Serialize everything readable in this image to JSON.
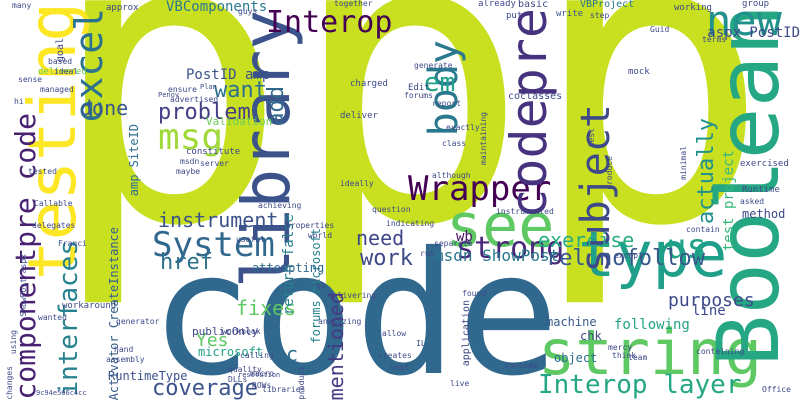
{
  "palette": {
    "background": "#ffffff",
    "yellow": "#c8e020",
    "blue": "#31688e",
    "teal": "#26a784",
    "purple": "#440154",
    "indigo": "#3b528b",
    "green": "#5ec962"
  },
  "words": [
    {
      "t": "ppp",
      "c": "#c8e020",
      "r": 0
    },
    {
      "t": "code",
      "c": "#31688e",
      "r": 0
    },
    {
      "t": "string",
      "c": "#5ec962",
      "r": 0
    },
    {
      "t": "Boolean",
      "c": "#26a784",
      "r": -90
    },
    {
      "t": "testing",
      "c": "#fde725",
      "r": -90
    },
    {
      "t": "type",
      "c": "#1f9e89",
      "r": 0
    },
    {
      "t": "library",
      "c": "#3b528b",
      "r": -90
    },
    {
      "t": "see",
      "c": "#5ec962",
      "r": 0
    },
    {
      "t": "Wrapper",
      "c": "#440154",
      "r": 0
    },
    {
      "t": "codepre",
      "c": "#46327e",
      "r": -90
    },
    {
      "t": "System",
      "c": "#31688e",
      "r": 0
    },
    {
      "t": "subject",
      "c": "#3e4989",
      "r": -90
    },
    {
      "t": "body",
      "c": "#2a788e",
      "r": -90
    },
    {
      "t": "msg",
      "c": "#a0da39",
      "r": 0
    },
    {
      "t": "excel",
      "c": "#2c728e",
      "r": -90
    },
    {
      "t": "interfaces",
      "c": "#26828e",
      "r": -90
    },
    {
      "t": "componentpre code",
      "c": "#482173",
      "r": -90
    },
    {
      "t": "Interop",
      "c": "#440154",
      "r": 0
    },
    {
      "t": "new",
      "c": "#21918c",
      "r": 0
    },
    {
      "t": "Interop layer",
      "c": "#26a784",
      "r": 0
    },
    {
      "t": "strong",
      "c": "#482878",
      "r": 0
    },
    {
      "t": "us",
      "c": "#20a386",
      "r": 0
    },
    {
      "t": "rel nofollow",
      "c": "#38588c",
      "r": 0
    },
    {
      "t": "exercise",
      "c": "#27ad81",
      "r": 0
    },
    {
      "t": "coverage",
      "c": "#3b528b",
      "r": 0
    },
    {
      "t": "problem",
      "c": "#433e85",
      "r": 0
    },
    {
      "t": "want",
      "c": "#2d708e",
      "r": 0
    },
    {
      "t": "instrument",
      "c": "#3b528b",
      "r": 0
    },
    {
      "t": "mentioned",
      "c": "#443983",
      "r": -90
    },
    {
      "t": "em",
      "c": "#1fa088",
      "r": 0
    },
    {
      "t": "work",
      "c": "#3e4989",
      "r": 0
    },
    {
      "t": "href",
      "c": "#2c728e",
      "r": 0
    },
    {
      "t": "fixes",
      "c": "#5ec962",
      "r": 0
    },
    {
      "t": "need",
      "c": "#3f4788",
      "r": 0
    },
    {
      "t": "done",
      "c": "#39568c",
      "r": 0
    },
    {
      "t": "msdn ShowPost",
      "c": "#2a788e",
      "r": 0
    },
    {
      "t": "add",
      "c": "#31688e",
      "r": -90
    },
    {
      "t": "purposes",
      "c": "#3e4a89",
      "r": 0
    },
    {
      "t": "wb",
      "c": "#471063",
      "r": 0
    },
    {
      "t": "actually",
      "c": "#21918c",
      "r": -90
    },
    {
      "t": "test project",
      "c": "#35b779",
      "r": -90
    },
    {
      "t": "aspx PostID",
      "c": "#3e4989",
      "r": 0
    },
    {
      "t": "VBComponents",
      "c": "#2a788e",
      "r": 0
    },
    {
      "t": "PostID amp",
      "c": "#3b528b",
      "r": 0
    },
    {
      "t": "amp SiteID",
      "c": "#2d708e",
      "r": -90
    },
    {
      "t": "return false",
      "c": "#27808e",
      "r": -90
    },
    {
      "t": "forums microsoft",
      "c": "#26828e",
      "r": -90
    },
    {
      "t": "Yes",
      "c": "#5ec962",
      "r": 0
    },
    {
      "t": "Activator CreateInstance",
      "c": "#355f8d",
      "r": -90
    },
    {
      "t": "c",
      "c": "#2e6e8e",
      "r": 0
    },
    {
      "t": "attempting",
      "c": "#31688e",
      "r": 0
    },
    {
      "t": "RuntimeType",
      "c": "#3b528b",
      "r": 0
    },
    {
      "t": "publicOnly",
      "c": "#3f4788",
      "r": 0
    },
    {
      "t": "Validation",
      "c": "#6ccd5a",
      "r": 0
    },
    {
      "t": "following",
      "c": "#20a386",
      "r": 0
    },
    {
      "t": "method",
      "c": "#3e4a89",
      "r": 0
    },
    {
      "t": "line",
      "c": "#3e4989",
      "r": 0
    },
    {
      "t": "chk",
      "c": "#3e4989",
      "r": 0
    },
    {
      "t": "object",
      "c": "#2e6e8e",
      "r": 0
    },
    {
      "t": "machine",
      "c": "#375a8c",
      "r": 0
    },
    {
      "t": "microsoft",
      "c": "#20a486",
      "r": 0
    },
    {
      "t": "coclasses",
      "c": "#3e4989",
      "r": 0
    },
    {
      "t": "basic",
      "c": "#3e4989",
      "r": 0
    },
    {
      "t": "write",
      "c": "#3b528b",
      "r": 0
    },
    {
      "t": "VBProject",
      "c": "#2a788e",
      "r": 0
    },
    {
      "t": "approx",
      "c": "#3e4989",
      "r": 0
    },
    {
      "t": "goal",
      "c": "#3e4989",
      "r": -90
    },
    {
      "t": "already",
      "c": "#3e4989",
      "r": 0
    },
    {
      "t": "working",
      "c": "#3e4989",
      "r": 0
    },
    {
      "t": "group",
      "c": "#3e4989",
      "r": 0
    },
    {
      "t": "Guid",
      "c": "#3e4989",
      "r": 0
    },
    {
      "t": "terms",
      "c": "#3e4989",
      "r": 0
    },
    {
      "t": "step",
      "c": "#3e4989",
      "r": 0
    },
    {
      "t": "put",
      "c": "#3e4989",
      "r": 0
    },
    {
      "t": "guys",
      "c": "#3e4989",
      "r": 0
    },
    {
      "t": "together",
      "c": "#3e4989",
      "r": 0
    },
    {
      "t": "many",
      "c": "#3e4989",
      "r": 0
    },
    {
      "t": "delivered",
      "c": "#6ccd5a",
      "r": 0
    },
    {
      "t": "based",
      "c": "#3e4989",
      "r": 0
    },
    {
      "t": "ideal",
      "c": "#3e4989",
      "r": 0
    },
    {
      "t": "sense",
      "c": "#3e4989",
      "r": 0
    },
    {
      "t": "managed",
      "c": "#3e4989",
      "r": 0
    },
    {
      "t": "hi",
      "c": "#3e4989",
      "r": 0
    },
    {
      "t": "generate",
      "c": "#3e4989",
      "r": 0
    },
    {
      "t": "Edit",
      "c": "#3e4989",
      "r": 0
    },
    {
      "t": "forums",
      "c": "#3e4989",
      "r": 0
    },
    {
      "t": "report",
      "c": "#3e4989",
      "r": 0
    },
    {
      "t": "maintaining",
      "c": "#3e4989",
      "r": -90
    },
    {
      "t": "exactly",
      "c": "#3e4989",
      "r": 0
    },
    {
      "t": "class",
      "c": "#3e4989",
      "r": 0
    },
    {
      "t": "charged",
      "c": "#3e4989",
      "r": 0
    },
    {
      "t": "deliver",
      "c": "#3e4989",
      "r": 0
    },
    {
      "t": "mock",
      "c": "#3e4989",
      "r": 0
    },
    {
      "t": "tested",
      "c": "#3e4989",
      "r": 0
    },
    {
      "t": "Callable",
      "c": "#3e4989",
      "r": 0
    },
    {
      "t": "constitute",
      "c": "#3e4989",
      "r": 0
    },
    {
      "t": "maybe",
      "c": "#3e4989",
      "r": 0
    },
    {
      "t": "server",
      "c": "#3e4989",
      "r": 0
    },
    {
      "t": "msdn",
      "c": "#3e4989",
      "r": 0
    },
    {
      "t": "ensure",
      "c": "#3e4989",
      "r": 0
    },
    {
      "t": "advertised",
      "c": "#3e4989",
      "r": 0
    },
    {
      "t": "Penov",
      "c": "#3e4989",
      "r": 0
    },
    {
      "t": "Plan",
      "c": "#3e4989",
      "r": 0
    },
    {
      "t": "ideally",
      "c": "#3e4989",
      "r": 0
    },
    {
      "t": "although",
      "c": "#3e4989",
      "r": 0
    },
    {
      "t": "produce",
      "c": "#3e4989",
      "r": -90
    },
    {
      "t": "test",
      "c": "#3e4989",
      "r": -90
    },
    {
      "t": "minimal",
      "c": "#3e4989",
      "r": -90
    },
    {
      "t": "exercised",
      "c": "#3e4989",
      "r": 0
    },
    {
      "t": "Runtime",
      "c": "#3e4989",
      "r": 0
    },
    {
      "t": "asked",
      "c": "#3e4989",
      "r": 0
    },
    {
      "t": "question",
      "c": "#3e4989",
      "r": 0
    },
    {
      "t": "indicating",
      "c": "#3e4989",
      "r": 0
    },
    {
      "t": "separate",
      "c": "#3e4989",
      "r": 0
    },
    {
      "t": "run",
      "c": "#3e4989",
      "r": 0
    },
    {
      "t": "instrumented",
      "c": "#3e4989",
      "r": 0
    },
    {
      "t": "except",
      "c": "#3e4989",
      "r": 0
    },
    {
      "t": "contain",
      "c": "#3e4989",
      "r": 0
    },
    {
      "t": "achieving",
      "c": "#3e4989",
      "r": 0
    },
    {
      "t": "properties",
      "c": "#3e4989",
      "r": 0
    },
    {
      "t": "useful",
      "c": "#3e4989",
      "r": 0
    },
    {
      "t": "world",
      "c": "#3e4989",
      "r": 0
    },
    {
      "t": "delegates",
      "c": "#3e4989",
      "r": 0
    },
    {
      "t": "Franci",
      "c": "#3e4989",
      "r": 0
    },
    {
      "t": "workaround",
      "c": "#3e4989",
      "r": 0
    },
    {
      "t": "wanted",
      "c": "#3e4989",
      "r": 0
    },
    {
      "t": "ShowPost aspx",
      "c": "#3e4989",
      "r": -90
    },
    {
      "t": "using",
      "c": "#3e4989",
      "r": -90
    },
    {
      "t": "changes",
      "c": "#3e4989",
      "r": -90
    },
    {
      "t": "generator",
      "c": "#3e4989",
      "r": 0
    },
    {
      "t": "hand",
      "c": "#3e4989",
      "r": 0
    },
    {
      "t": "assembly",
      "c": "#3e4989",
      "r": 0
    },
    {
      "t": "workbook",
      "c": "#3e4989",
      "r": 0
    },
    {
      "t": "quality",
      "c": "#3e4989",
      "r": 0
    },
    {
      "t": "DLLs",
      "c": "#3e4989",
      "r": 0
    },
    {
      "t": "macro",
      "c": "#3e4989",
      "r": 0
    },
    {
      "t": "calling",
      "c": "#3e4989",
      "r": 0
    },
    {
      "t": "resolution",
      "c": "#3e4989",
      "r": 0
    },
    {
      "t": "libraries",
      "c": "#3e4989",
      "r": 0
    },
    {
      "t": "ROWs",
      "c": "#3e4989",
      "r": 0
    },
    {
      "t": "go",
      "c": "#3e4989",
      "r": 0
    },
    {
      "t": "delivering",
      "c": "#3e4989",
      "r": 0
    },
    {
      "t": "analyzing",
      "c": "#3e4989",
      "r": 0
    },
    {
      "t": "product",
      "c": "#3e4989",
      "r": -90
    },
    {
      "t": "allow",
      "c": "#3e4989",
      "r": 0
    },
    {
      "t": "creates",
      "c": "#3e4989",
      "r": 0
    },
    {
      "t": "next",
      "c": "#3e4989",
      "r": 0
    },
    {
      "t": "IL",
      "c": "#3e4989",
      "r": 0
    },
    {
      "t": "application",
      "c": "#3e4989",
      "r": -90
    },
    {
      "t": "found",
      "c": "#3e4989",
      "r": 0
    },
    {
      "t": "live",
      "c": "#3e4989",
      "r": 0
    },
    {
      "t": "consume",
      "c": "#3e4989",
      "r": 0
    },
    {
      "t": "mercy",
      "c": "#3e4989",
      "r": 0
    },
    {
      "t": "think",
      "c": "#3e4989",
      "r": 0
    },
    {
      "t": "team",
      "c": "#3e4989",
      "r": 0
    },
    {
      "t": "containing",
      "c": "#3e4989",
      "r": 0
    },
    {
      "t": "Office",
      "c": "#3e4989",
      "r": 0
    },
    {
      "t": "9c94e566c4cc",
      "c": "#3e4989",
      "r": 0
    }
  ]
}
